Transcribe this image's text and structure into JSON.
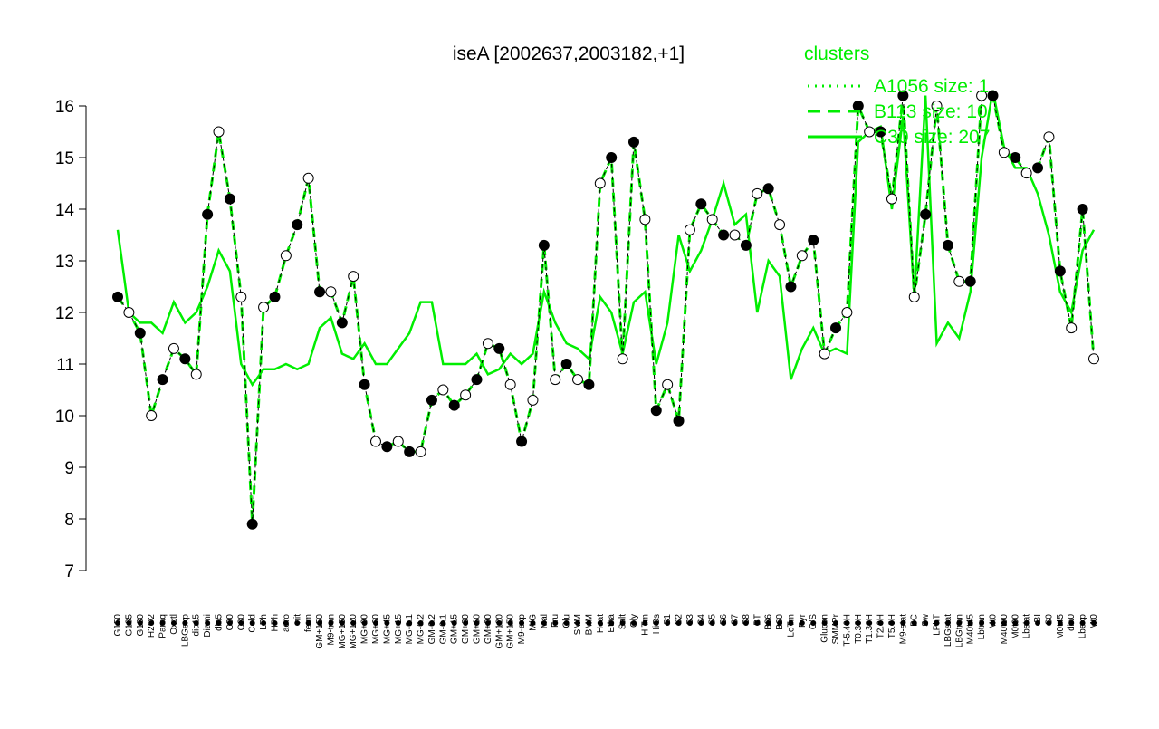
{
  "chart_data": {
    "type": "line",
    "title": "iseA [2002637,2003182,+1]",
    "categories": [
      "G150",
      "G135",
      "G180",
      "H2O2",
      "Paraq",
      "Oxctl",
      "LBGexp",
      "dia15",
      "Diami",
      "dia5",
      "C90",
      "C30",
      "Cold",
      "LPh",
      "HPh",
      "aero",
      "nit",
      "ferm",
      "GM+150",
      "M9-tran",
      "MG+150",
      "MG+120",
      "MG+90",
      "MG+60",
      "MG+45",
      "MG+15",
      "MG-0.1",
      "MG-0.2",
      "GM-0.2",
      "GM-0.1",
      "GM+15",
      "GM+30",
      "GM+60",
      "GM+90",
      "GM+120",
      "GM+150",
      "M9-exp",
      "M/G",
      "Mal",
      "Fru",
      "Glu",
      "SMM",
      "BMM",
      "Heat",
      "Etha",
      "Salt",
      "Gly",
      "HiTm",
      "HiOs",
      "S1",
      "S2",
      "S3",
      "S4",
      "S5",
      "S6",
      "S7",
      "S8",
      "BT",
      "B36",
      "B60",
      "LoTm",
      "Pyr",
      "G/S",
      "Glucon",
      "SMMPr",
      "T-5.40H",
      "T0.30H",
      "T1.30H",
      "T2.0H",
      "T5.0H",
      "M9-stat",
      "BC",
      "Sw",
      "LPhT",
      "LBGstat",
      "LBGtran",
      "M40t45",
      "Lbtran",
      "Mt0",
      "M40t90",
      "M0t90",
      "Lbstat",
      "BI",
      "S0",
      "M0t45",
      "dia0",
      "Lbexp",
      "Mt0"
    ],
    "series": [
      {
        "color": "#000000",
        "values": [
          12.3,
          12.0,
          11.6,
          10.0,
          10.7,
          11.3,
          11.1,
          10.8,
          13.9,
          15.5,
          14.2,
          12.3,
          7.9,
          12.1,
          12.3,
          13.1,
          13.7,
          14.6,
          12.4,
          12.4,
          11.8,
          12.7,
          10.6,
          9.5,
          9.4,
          9.5,
          9.3,
          9.3,
          10.3,
          10.5,
          10.2,
          10.4,
          10.7,
          11.4,
          11.3,
          10.6,
          9.5,
          10.3,
          13.3,
          10.7,
          11.0,
          10.7,
          10.6,
          14.5,
          15.0,
          11.1,
          15.3,
          13.8,
          10.1,
          10.6,
          9.9,
          13.6,
          14.1,
          13.8,
          13.5,
          13.5,
          13.3,
          14.3,
          14.4,
          13.7,
          12.5,
          13.1,
          13.4,
          11.2,
          11.7,
          12.0,
          16.0,
          15.5,
          15.5,
          14.2,
          16.2,
          12.3,
          13.9,
          16.0,
          13.3,
          12.6,
          12.6,
          16.2,
          16.2,
          15.1,
          15.0,
          14.7,
          14.8,
          15.4,
          12.8,
          11.7,
          14.0,
          11.1
        ]
      },
      {
        "color": "#00ee00",
        "values": [
          13.6,
          12.0,
          11.8,
          11.8,
          11.6,
          12.2,
          11.8,
          12.0,
          12.5,
          13.2,
          12.8,
          11.0,
          10.6,
          10.9,
          10.9,
          11.0,
          10.9,
          11.0,
          11.7,
          11.9,
          11.2,
          11.1,
          11.4,
          11.0,
          11.0,
          11.3,
          11.6,
          12.2,
          12.2,
          11.0,
          11.0,
          11.0,
          11.2,
          10.8,
          10.9,
          11.2,
          11.0,
          11.2,
          12.4,
          11.8,
          11.4,
          11.3,
          11.1,
          12.3,
          12.0,
          11.2,
          12.2,
          12.4,
          11.0,
          11.8,
          13.5,
          12.8,
          13.2,
          13.8,
          14.5,
          13.7,
          13.9,
          12.0,
          13.0,
          12.7,
          10.7,
          11.3,
          11.7,
          11.2,
          11.3,
          11.2,
          15.3,
          15.5,
          15.6,
          14.0,
          15.8,
          12.3,
          16.2,
          11.4,
          11.8,
          11.5,
          12.4,
          15.0,
          16.3,
          15.2,
          14.8,
          14.8,
          14.3,
          13.5,
          12.4,
          12.0,
          13.2,
          13.6
        ]
      }
    ],
    "legend": {
      "title": "clusters",
      "color": "#00ee00",
      "entries": [
        {
          "label": "A1056 size: 1",
          "dash": "2,6"
        },
        {
          "label": "B113 size: 10",
          "dash": "14,8"
        },
        {
          "label": "C30 size: 207",
          "dash": "none"
        }
      ]
    },
    "ylim": [
      7,
      16
    ],
    "yticks": [
      7,
      8,
      9,
      10,
      11,
      12,
      13,
      14,
      15,
      16
    ]
  }
}
